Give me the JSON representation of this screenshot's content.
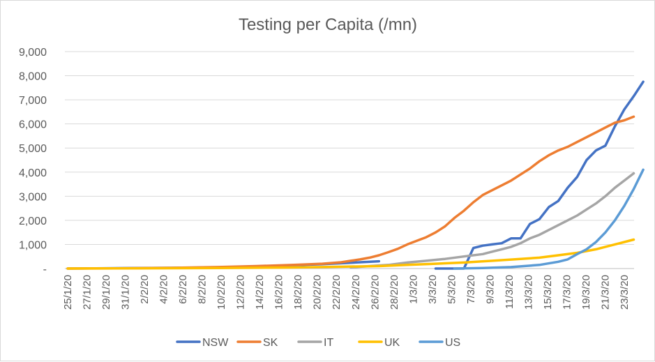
{
  "chart_data": {
    "type": "line",
    "title": "Testing per Capita (/mn)",
    "xlabel": "",
    "ylabel": "",
    "ylim": [
      0,
      9000
    ],
    "yticks": [
      {
        "value": 0,
        "label": "-"
      },
      {
        "value": 1000,
        "label": "1,000"
      },
      {
        "value": 2000,
        "label": "2,000"
      },
      {
        "value": 3000,
        "label": "3,000"
      },
      {
        "value": 4000,
        "label": "4,000"
      },
      {
        "value": 5000,
        "label": "5,000"
      },
      {
        "value": 6000,
        "label": "6,000"
      },
      {
        "value": 7000,
        "label": "7,000"
      },
      {
        "value": 8000,
        "label": "8,000"
      },
      {
        "value": 9000,
        "label": "9,000"
      }
    ],
    "x_start_date": "2020-01-25",
    "x_end_date": "2020-03-24",
    "xtick_labels": [
      "25/1/20",
      "27/1/20",
      "29/1/20",
      "31/1/20",
      "2/2/20",
      "4/2/20",
      "6/2/20",
      "8/2/20",
      "10/2/20",
      "12/2/20",
      "14/2/20",
      "16/2/20",
      "18/2/20",
      "20/2/20",
      "22/2/20",
      "24/2/20",
      "26/2/20",
      "28/2/20",
      "1/3/20",
      "3/3/20",
      "5/3/20",
      "7/3/20",
      "9/3/20",
      "11/3/20",
      "13/3/20",
      "15/3/20",
      "17/3/20",
      "19/3/20",
      "21/3/20",
      "23/3/20"
    ],
    "grid": true,
    "legend": "bottom",
    "series": [
      {
        "name": "NSW",
        "color": "#4472C4",
        "points": [
          [
            "2020-01-25",
            0
          ],
          [
            "2020-01-28",
            10
          ],
          [
            "2020-02-01",
            20
          ],
          [
            "2020-02-05",
            30
          ],
          [
            "2020-02-08",
            40
          ],
          [
            "2020-02-12",
            60
          ],
          [
            "2020-02-15",
            100
          ],
          [
            "2020-02-17",
            120
          ],
          [
            "2020-02-19",
            150
          ],
          [
            "2020-02-21",
            180
          ],
          [
            "2020-02-23",
            220
          ],
          [
            "2020-02-25",
            260
          ],
          [
            "2020-02-27",
            300
          ]
        ]
      },
      {
        "name": "NSW",
        "color": "#4472C4",
        "legend": false,
        "points": [
          [
            "2020-03-04",
            0
          ],
          [
            "2020-03-05",
            0
          ],
          [
            "2020-03-06",
            0
          ],
          [
            "2020-03-07",
            0
          ],
          [
            "2020-03-08",
            850
          ],
          [
            "2020-03-09",
            950
          ],
          [
            "2020-03-10",
            1000
          ],
          [
            "2020-03-11",
            1050
          ],
          [
            "2020-03-12",
            1250
          ],
          [
            "2020-03-13",
            1250
          ],
          [
            "2020-03-14",
            1850
          ],
          [
            "2020-03-15",
            2050
          ],
          [
            "2020-03-16",
            2550
          ],
          [
            "2020-03-17",
            2800
          ],
          [
            "2020-03-18",
            3350
          ],
          [
            "2020-03-19",
            3800
          ],
          [
            "2020-03-20",
            4500
          ],
          [
            "2020-03-21",
            4900
          ],
          [
            "2020-03-22",
            5100
          ],
          [
            "2020-03-23",
            5900
          ],
          [
            "2020-03-24",
            6600
          ],
          [
            "2020-03-25",
            7150
          ],
          [
            "2020-03-26",
            7750
          ]
        ]
      },
      {
        "name": "SK",
        "color": "#ED7D31",
        "points": [
          [
            "2020-01-25",
            0
          ],
          [
            "2020-01-30",
            10
          ],
          [
            "2020-02-05",
            30
          ],
          [
            "2020-02-10",
            60
          ],
          [
            "2020-02-14",
            100
          ],
          [
            "2020-02-18",
            150
          ],
          [
            "2020-02-21",
            200
          ],
          [
            "2020-02-23",
            260
          ],
          [
            "2020-02-24",
            320
          ],
          [
            "2020-02-25",
            380
          ],
          [
            "2020-02-26",
            450
          ],
          [
            "2020-02-27",
            550
          ],
          [
            "2020-02-28",
            680
          ],
          [
            "2020-02-29",
            820
          ],
          [
            "2020-03-01",
            1000
          ],
          [
            "2020-03-02",
            1150
          ],
          [
            "2020-03-03",
            1300
          ],
          [
            "2020-03-04",
            1500
          ],
          [
            "2020-03-05",
            1750
          ],
          [
            "2020-03-06",
            2100
          ],
          [
            "2020-03-07",
            2400
          ],
          [
            "2020-03-08",
            2750
          ],
          [
            "2020-03-09",
            3050
          ],
          [
            "2020-03-10",
            3250
          ],
          [
            "2020-03-11",
            3450
          ],
          [
            "2020-03-12",
            3650
          ],
          [
            "2020-03-13",
            3900
          ],
          [
            "2020-03-14",
            4150
          ],
          [
            "2020-03-15",
            4450
          ],
          [
            "2020-03-16",
            4700
          ],
          [
            "2020-03-17",
            4900
          ],
          [
            "2020-03-18",
            5050
          ],
          [
            "2020-03-19",
            5250
          ],
          [
            "2020-03-20",
            5450
          ],
          [
            "2020-03-21",
            5650
          ],
          [
            "2020-03-22",
            5850
          ],
          [
            "2020-03-23",
            6050
          ],
          [
            "2020-03-24",
            6150
          ],
          [
            "2020-03-25",
            6300
          ]
        ]
      },
      {
        "name": "IT",
        "color": "#A5A5A5",
        "points": [
          [
            "2020-02-24",
            50
          ],
          [
            "2020-02-26",
            100
          ],
          [
            "2020-02-28",
            150
          ],
          [
            "2020-03-01",
            250
          ],
          [
            "2020-03-03",
            320
          ],
          [
            "2020-03-05",
            400
          ],
          [
            "2020-03-07",
            500
          ],
          [
            "2020-03-09",
            600
          ],
          [
            "2020-03-10",
            700
          ],
          [
            "2020-03-11",
            800
          ],
          [
            "2020-03-12",
            900
          ],
          [
            "2020-03-13",
            1050
          ],
          [
            "2020-03-14",
            1250
          ],
          [
            "2020-03-15",
            1400
          ],
          [
            "2020-03-16",
            1600
          ],
          [
            "2020-03-17",
            1800
          ],
          [
            "2020-03-18",
            2000
          ],
          [
            "2020-03-19",
            2200
          ],
          [
            "2020-03-20",
            2450
          ],
          [
            "2020-03-21",
            2700
          ],
          [
            "2020-03-22",
            3000
          ],
          [
            "2020-03-23",
            3350
          ],
          [
            "2020-03-24",
            3650
          ],
          [
            "2020-03-25",
            3950
          ]
        ]
      },
      {
        "name": "UK",
        "color": "#FFC000",
        "points": [
          [
            "2020-01-25",
            0
          ],
          [
            "2020-02-01",
            10
          ],
          [
            "2020-02-10",
            20
          ],
          [
            "2020-02-17",
            40
          ],
          [
            "2020-02-22",
            70
          ],
          [
            "2020-02-27",
            100
          ],
          [
            "2020-03-01",
            150
          ],
          [
            "2020-03-04",
            200
          ],
          [
            "2020-03-07",
            250
          ],
          [
            "2020-03-10",
            320
          ],
          [
            "2020-03-13",
            400
          ],
          [
            "2020-03-15",
            450
          ],
          [
            "2020-03-17",
            550
          ],
          [
            "2020-03-19",
            650
          ],
          [
            "2020-03-21",
            800
          ],
          [
            "2020-03-22",
            900
          ],
          [
            "2020-03-23",
            1000
          ],
          [
            "2020-03-24",
            1100
          ],
          [
            "2020-03-25",
            1200
          ]
        ]
      },
      {
        "name": "US",
        "color": "#5B9BD5",
        "points": [
          [
            "2020-03-06",
            0
          ],
          [
            "2020-03-09",
            20
          ],
          [
            "2020-03-12",
            60
          ],
          [
            "2020-03-15",
            150
          ],
          [
            "2020-03-17",
            280
          ],
          [
            "2020-03-18",
            380
          ],
          [
            "2020-03-19",
            600
          ],
          [
            "2020-03-20",
            800
          ],
          [
            "2020-03-21",
            1100
          ],
          [
            "2020-03-22",
            1500
          ],
          [
            "2020-03-23",
            2000
          ],
          [
            "2020-03-24",
            2600
          ],
          [
            "2020-03-25",
            3300
          ],
          [
            "2020-03-26",
            4100
          ]
        ]
      }
    ]
  }
}
